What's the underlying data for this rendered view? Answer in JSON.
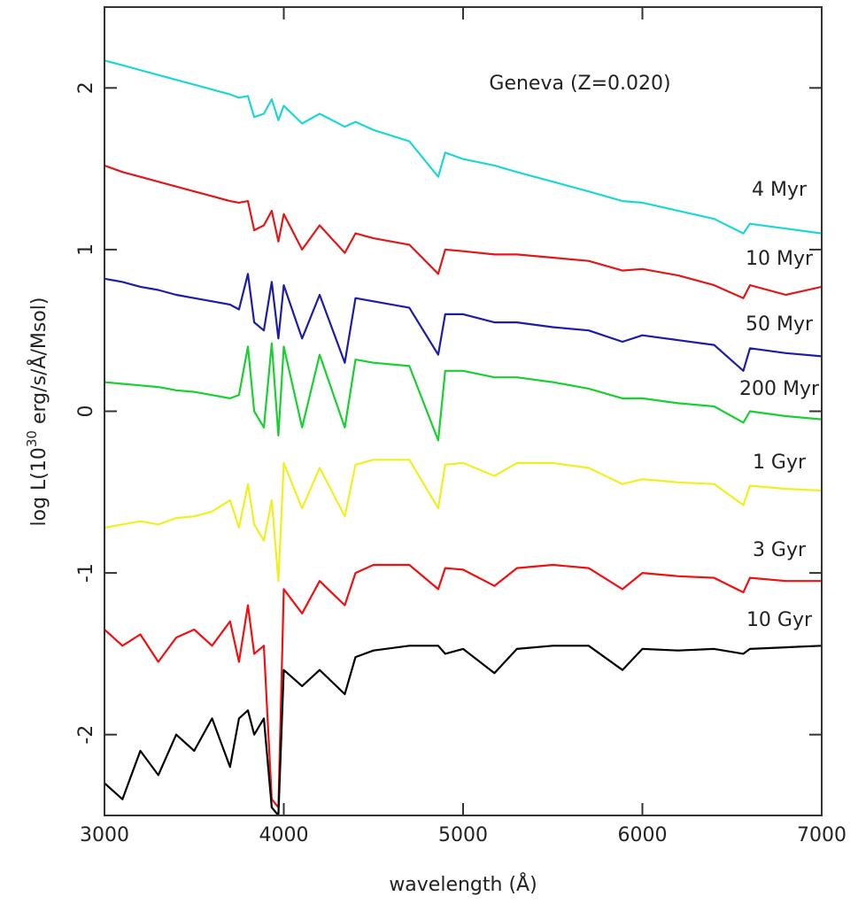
{
  "chart_data": {
    "type": "line",
    "annotation": "Geneva (Z=0.020)",
    "xlabel": "wavelength (Å)",
    "ylabel_parts": [
      "log L(10",
      "30",
      " erg/s/Å/Msol)"
    ],
    "x": [
      3000,
      3100,
      3200,
      3300,
      3400,
      3500,
      3600,
      3700,
      3750,
      3800,
      3835,
      3889,
      3933,
      3970,
      4000,
      4102,
      4200,
      4340,
      4400,
      4500,
      4700,
      4861,
      4900,
      5000,
      5175,
      5300,
      5500,
      5700,
      5889,
      6000,
      6200,
      6400,
      6563,
      6600,
      6800,
      7000
    ],
    "xlim": [
      3000,
      7000
    ],
    "xticks": [
      3000,
      4000,
      5000,
      6000,
      7000
    ],
    "ylim": [
      -2.5,
      2.5
    ],
    "yticks": [
      -2,
      -1,
      0,
      1,
      2
    ],
    "grid": false,
    "series": [
      {
        "name": "4 Myr",
        "color": "#1ed6d6",
        "values": [
          2.17,
          2.14,
          2.11,
          2.08,
          2.05,
          2.02,
          1.99,
          1.96,
          1.94,
          1.95,
          1.82,
          1.84,
          1.93,
          1.8,
          1.89,
          1.78,
          1.84,
          1.76,
          1.79,
          1.74,
          1.67,
          1.45,
          1.6,
          1.56,
          1.52,
          1.48,
          1.42,
          1.36,
          1.3,
          1.29,
          1.24,
          1.19,
          1.1,
          1.16,
          1.13,
          1.1
        ]
      },
      {
        "name": "10 Myr",
        "color": "#e01818",
        "values": [
          1.52,
          1.48,
          1.45,
          1.42,
          1.39,
          1.36,
          1.33,
          1.3,
          1.29,
          1.3,
          1.12,
          1.15,
          1.24,
          1.05,
          1.22,
          1.0,
          1.15,
          0.98,
          1.1,
          1.07,
          1.03,
          0.85,
          1.0,
          0.99,
          0.97,
          0.97,
          0.95,
          0.93,
          0.87,
          0.88,
          0.84,
          0.78,
          0.7,
          0.78,
          0.72,
          0.77
        ]
      },
      {
        "name": "50 Myr",
        "color": "#1c1ca8",
        "values": [
          0.82,
          0.8,
          0.77,
          0.75,
          0.72,
          0.7,
          0.68,
          0.66,
          0.63,
          0.85,
          0.55,
          0.5,
          0.8,
          0.45,
          0.78,
          0.45,
          0.72,
          0.3,
          0.7,
          0.68,
          0.64,
          0.35,
          0.6,
          0.6,
          0.55,
          0.55,
          0.52,
          0.5,
          0.43,
          0.47,
          0.44,
          0.41,
          0.25,
          0.39,
          0.36,
          0.34
        ]
      },
      {
        "name": "200 Myr",
        "color": "#18d030",
        "values": [
          0.18,
          0.17,
          0.16,
          0.15,
          0.13,
          0.12,
          0.1,
          0.08,
          0.1,
          0.4,
          0.0,
          -0.1,
          0.42,
          -0.15,
          0.4,
          -0.1,
          0.35,
          -0.1,
          0.32,
          0.3,
          0.28,
          -0.18,
          0.25,
          0.25,
          0.21,
          0.21,
          0.18,
          0.14,
          0.08,
          0.08,
          0.05,
          0.03,
          -0.07,
          0.0,
          -0.03,
          -0.05
        ]
      },
      {
        "name": "1 Gyr",
        "color": "#f0f020",
        "values": [
          -0.72,
          -0.7,
          -0.68,
          -0.7,
          -0.66,
          -0.65,
          -0.62,
          -0.55,
          -0.72,
          -0.45,
          -0.7,
          -0.8,
          -0.55,
          -1.05,
          -0.32,
          -0.6,
          -0.35,
          -0.65,
          -0.33,
          -0.3,
          -0.3,
          -0.6,
          -0.33,
          -0.32,
          -0.4,
          -0.32,
          -0.32,
          -0.35,
          -0.45,
          -0.42,
          -0.44,
          -0.45,
          -0.58,
          -0.46,
          -0.48,
          -0.49
        ]
      },
      {
        "name": "3 Gyr",
        "color": "#f01010",
        "values": [
          -1.35,
          -1.45,
          -1.38,
          -1.55,
          -1.4,
          -1.35,
          -1.45,
          -1.3,
          -1.55,
          -1.2,
          -1.5,
          -1.45,
          -2.4,
          -2.45,
          -1.1,
          -1.25,
          -1.05,
          -1.2,
          -1.0,
          -0.95,
          -0.95,
          -1.1,
          -0.97,
          -0.98,
          -1.08,
          -0.97,
          -0.95,
          -0.97,
          -1.1,
          -1.0,
          -1.02,
          -1.03,
          -1.12,
          -1.03,
          -1.05,
          -1.05
        ]
      },
      {
        "name": "10 Gyr",
        "color": "#000000",
        "values": [
          -2.3,
          -2.4,
          -2.1,
          -2.25,
          -2.0,
          -2.1,
          -1.9,
          -2.2,
          -1.9,
          -1.85,
          -2.0,
          -1.9,
          -2.45,
          -2.5,
          -1.6,
          -1.7,
          -1.6,
          -1.75,
          -1.52,
          -1.48,
          -1.45,
          -1.45,
          -1.5,
          -1.47,
          -1.62,
          -1.47,
          -1.45,
          -1.45,
          -1.6,
          -1.47,
          -1.48,
          -1.47,
          -1.5,
          -1.47,
          -1.46,
          -1.45
        ]
      }
    ]
  }
}
